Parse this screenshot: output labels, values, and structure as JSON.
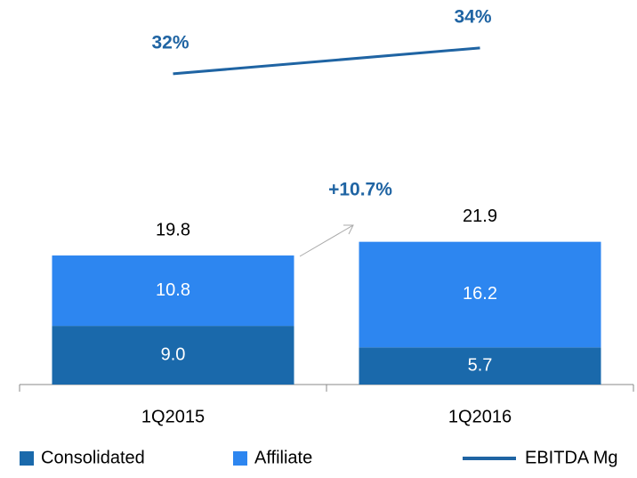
{
  "chart_data": {
    "type": "bar",
    "stacked": true,
    "categories": [
      "1Q2015",
      "1Q2016"
    ],
    "series": [
      {
        "name": "Consolidated",
        "color": "#1a69ab",
        "values": [
          9.0,
          5.7
        ],
        "value_labels": [
          "9.0",
          "5.7"
        ]
      },
      {
        "name": "Affiliate",
        "color": "#2d86f0",
        "values": [
          10.8,
          16.2
        ]
      },
      {
        "name": "EBITDA Mg",
        "type": "line",
        "axis": "y2",
        "color": "#1f64a3",
        "values": [
          32,
          34
        ],
        "value_labels": [
          "32%",
          "34%"
        ]
      }
    ],
    "totals": [
      19.8,
      21.9
    ],
    "annotation": "+10.7%",
    "ylim": [
      0,
      59
    ],
    "y2lim": [
      8,
      37.7
    ],
    "legend": "bottom"
  }
}
